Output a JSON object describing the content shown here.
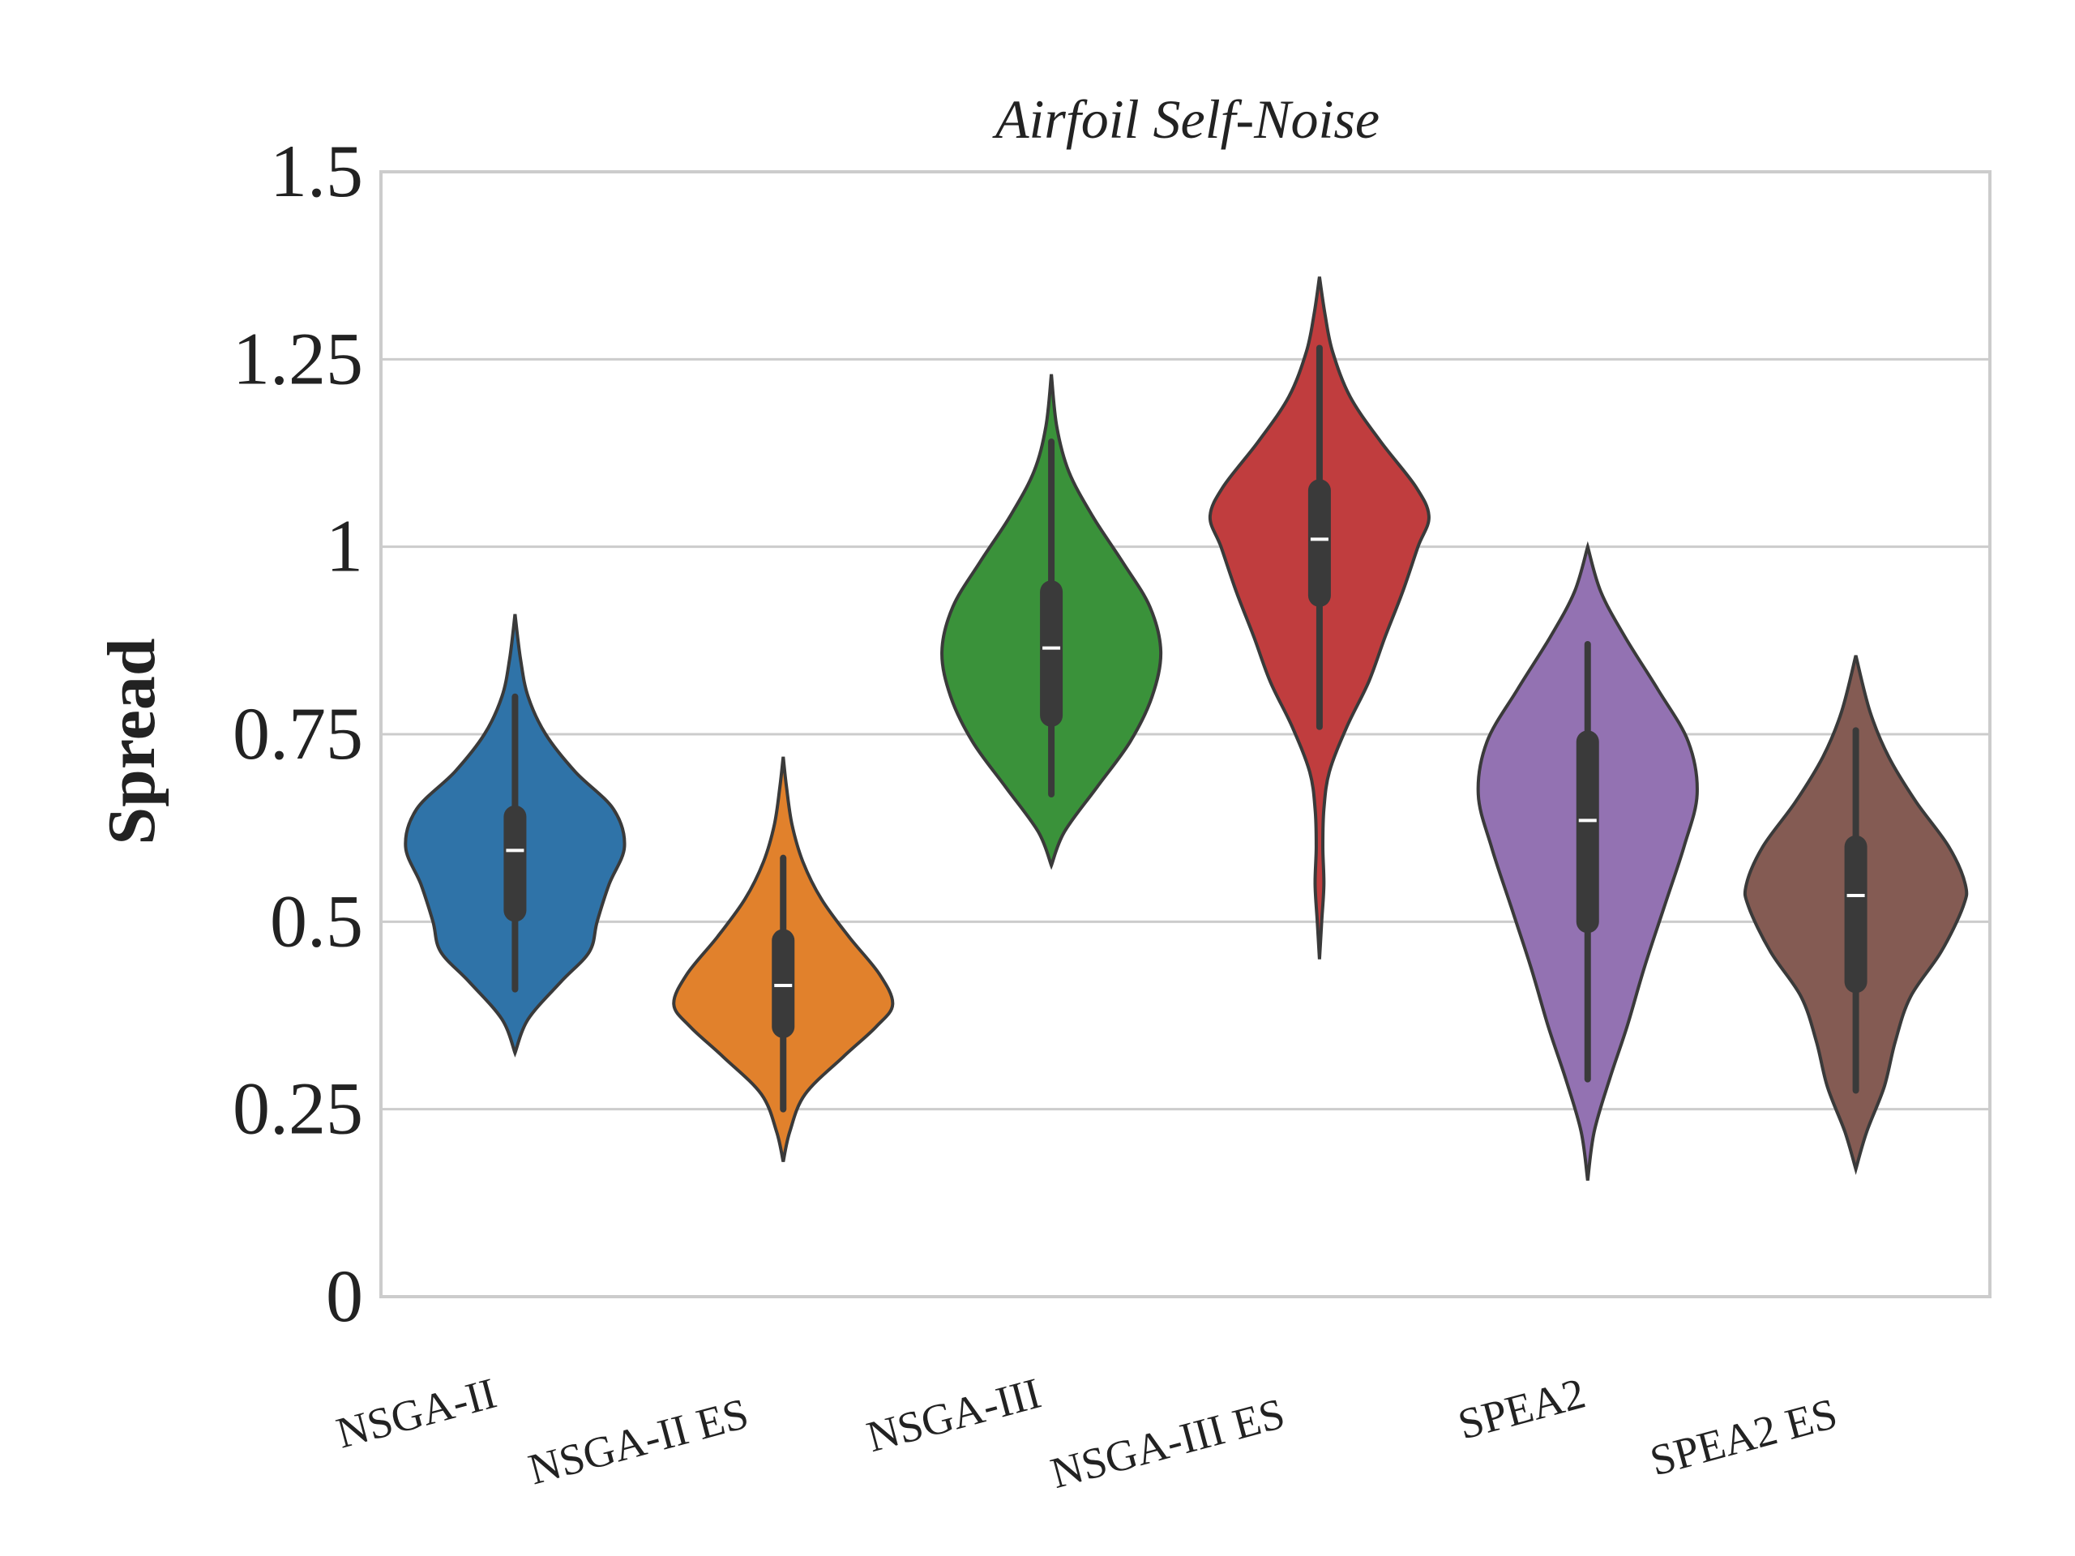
{
  "chart_data": {
    "type": "violin",
    "title": "Airfoil Self-Noise",
    "xlabel": "",
    "ylabel": "Spread",
    "ylim": [
      0,
      1.5
    ],
    "yticks": [
      0,
      0.25,
      0.5,
      0.75,
      1,
      1.25,
      1.5
    ],
    "ytick_labels": [
      "0",
      "0.25",
      "0.5",
      "0.75",
      "1",
      "1.25",
      "1.5"
    ],
    "grid": "horizontal",
    "categories": [
      "NSGA-II",
      "NSGA-II ES",
      "NSGA-III",
      "NSGA-III ES",
      "SPEA2",
      "SPEA2 ES"
    ],
    "series": [
      {
        "category": "NSGA-II",
        "color": "#2f73a8",
        "min": 0.41,
        "q1": 0.515,
        "median": 0.595,
        "q3": 0.64,
        "max": 0.8,
        "kde_range": [
          0.325,
          0.91
        ],
        "density": [
          [
            0.325,
            0.0
          ],
          [
            0.37,
            0.12
          ],
          [
            0.42,
            0.42
          ],
          [
            0.46,
            0.68
          ],
          [
            0.5,
            0.75
          ],
          [
            0.55,
            0.86
          ],
          [
            0.6,
            1.0
          ],
          [
            0.65,
            0.9
          ],
          [
            0.7,
            0.55
          ],
          [
            0.75,
            0.28
          ],
          [
            0.8,
            0.12
          ],
          [
            0.85,
            0.05
          ],
          [
            0.91,
            0.0
          ]
        ]
      },
      {
        "category": "NSGA-II ES",
        "color": "#e1812c",
        "min": 0.25,
        "q1": 0.36,
        "median": 0.415,
        "q3": 0.475,
        "max": 0.585,
        "kde_range": [
          0.18,
          0.72
        ],
        "density": [
          [
            0.18,
            0.0
          ],
          [
            0.22,
            0.06
          ],
          [
            0.27,
            0.2
          ],
          [
            0.32,
            0.55
          ],
          [
            0.36,
            0.85
          ],
          [
            0.39,
            1.0
          ],
          [
            0.43,
            0.88
          ],
          [
            0.48,
            0.6
          ],
          [
            0.53,
            0.35
          ],
          [
            0.58,
            0.18
          ],
          [
            0.63,
            0.08
          ],
          [
            0.68,
            0.03
          ],
          [
            0.72,
            0.0
          ]
        ]
      },
      {
        "category": "NSGA-III",
        "color": "#3a923a",
        "min": 0.67,
        "q1": 0.775,
        "median": 0.865,
        "q3": 0.94,
        "max": 1.14,
        "kde_range": [
          0.575,
          1.23
        ],
        "density": [
          [
            0.575,
            0.0
          ],
          [
            0.62,
            0.12
          ],
          [
            0.68,
            0.42
          ],
          [
            0.74,
            0.72
          ],
          [
            0.8,
            0.92
          ],
          [
            0.86,
            1.0
          ],
          [
            0.92,
            0.9
          ],
          [
            0.98,
            0.65
          ],
          [
            1.04,
            0.38
          ],
          [
            1.1,
            0.16
          ],
          [
            1.16,
            0.05
          ],
          [
            1.23,
            0.0
          ]
        ]
      },
      {
        "category": "NSGA-III ES",
        "color": "#c03d3e",
        "min": 0.76,
        "q1": 0.935,
        "median": 1.01,
        "q3": 1.075,
        "max": 1.265,
        "kde_range": [
          0.45,
          1.36
        ],
        "density": [
          [
            0.45,
            0.0
          ],
          [
            0.5,
            0.02
          ],
          [
            0.55,
            0.04
          ],
          [
            0.6,
            0.03
          ],
          [
            0.65,
            0.04
          ],
          [
            0.7,
            0.09
          ],
          [
            0.76,
            0.25
          ],
          [
            0.82,
            0.45
          ],
          [
            0.88,
            0.6
          ],
          [
            0.94,
            0.76
          ],
          [
            1.0,
            0.9
          ],
          [
            1.04,
            1.0
          ],
          [
            1.08,
            0.88
          ],
          [
            1.14,
            0.56
          ],
          [
            1.2,
            0.28
          ],
          [
            1.26,
            0.12
          ],
          [
            1.31,
            0.05
          ],
          [
            1.36,
            0.0
          ]
        ]
      },
      {
        "category": "SPEA2",
        "color": "#9372b2",
        "min": 0.29,
        "q1": 0.5,
        "median": 0.635,
        "q3": 0.74,
        "max": 0.87,
        "kde_range": [
          0.155,
          1.0
        ],
        "density": [
          [
            0.155,
            0.0
          ],
          [
            0.22,
            0.06
          ],
          [
            0.29,
            0.2
          ],
          [
            0.36,
            0.36
          ],
          [
            0.44,
            0.52
          ],
          [
            0.52,
            0.7
          ],
          [
            0.6,
            0.88
          ],
          [
            0.67,
            1.0
          ],
          [
            0.74,
            0.92
          ],
          [
            0.81,
            0.64
          ],
          [
            0.88,
            0.34
          ],
          [
            0.94,
            0.12
          ],
          [
            1.0,
            0.0
          ]
        ]
      },
      {
        "category": "SPEA2 ES",
        "color": "#845b53",
        "min": 0.275,
        "q1": 0.42,
        "median": 0.535,
        "q3": 0.6,
        "max": 0.755,
        "kde_range": [
          0.17,
          0.855
        ],
        "density": [
          [
            0.17,
            0.0
          ],
          [
            0.22,
            0.1
          ],
          [
            0.28,
            0.26
          ],
          [
            0.34,
            0.36
          ],
          [
            0.4,
            0.5
          ],
          [
            0.46,
            0.78
          ],
          [
            0.52,
            0.98
          ],
          [
            0.55,
            1.0
          ],
          [
            0.6,
            0.85
          ],
          [
            0.66,
            0.55
          ],
          [
            0.72,
            0.3
          ],
          [
            0.78,
            0.13
          ],
          [
            0.855,
            0.0
          ]
        ]
      }
    ]
  }
}
